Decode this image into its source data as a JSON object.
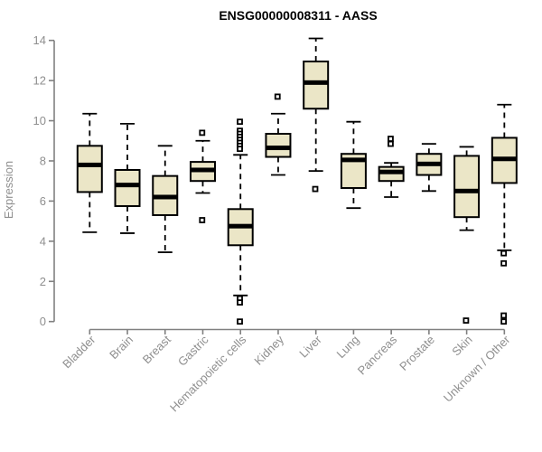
{
  "title": "ENSG00000008311 - AASS",
  "colors": {
    "background": "#ffffff",
    "box_fill": "#ebe6c7",
    "box_border": "#000000",
    "median": "#000000",
    "whisker": "#000000",
    "axis_line": "#808080",
    "axis_text": "#8f8f8f",
    "title_text": "#000000"
  },
  "chart_data": {
    "type": "boxplot",
    "title": "ENSG00000008311 - AASS",
    "xlabel": "",
    "ylabel": "Expression",
    "ylim": [
      0,
      14
    ],
    "yticks": [
      0,
      2,
      4,
      6,
      8,
      10,
      12,
      14
    ],
    "grid": false,
    "legend": "none",
    "categories": [
      "Bladder",
      "Brain",
      "Breast",
      "Gastric",
      "Hematopoietic cells",
      "Kidney",
      "Liver",
      "Lung",
      "Pancreas",
      "Prostate",
      "Skin",
      "Unknown / Other"
    ],
    "series": [
      {
        "category": "Bladder",
        "whisker_low": 4.45,
        "q1": 6.45,
        "median": 7.8,
        "q3": 8.75,
        "whisker_high": 10.35,
        "outliers": []
      },
      {
        "category": "Brain",
        "whisker_low": 4.4,
        "q1": 5.75,
        "median": 6.8,
        "q3": 7.55,
        "whisker_high": 9.85,
        "outliers": []
      },
      {
        "category": "Breast",
        "whisker_low": 3.45,
        "q1": 5.3,
        "median": 6.2,
        "q3": 7.25,
        "whisker_high": 8.75,
        "outliers": []
      },
      {
        "category": "Gastric",
        "whisker_low": 6.4,
        "q1": 7.0,
        "median": 7.55,
        "q3": 7.95,
        "whisker_high": 9.0,
        "outliers": [
          9.4,
          5.05
        ]
      },
      {
        "category": "Hematopoietic cells",
        "whisker_low": 1.3,
        "q1": 3.8,
        "median": 4.75,
        "q3": 5.6,
        "whisker_high": 8.3,
        "outliers": [
          9.95,
          9.5,
          9.35,
          9.2,
          9.05,
          8.9,
          8.75,
          8.6,
          1.15,
          0.95,
          0.0
        ]
      },
      {
        "category": "Kidney",
        "whisker_low": 7.3,
        "q1": 8.2,
        "median": 8.65,
        "q3": 9.35,
        "whisker_high": 10.35,
        "outliers": [
          11.2
        ]
      },
      {
        "category": "Liver",
        "whisker_low": 7.5,
        "q1": 10.6,
        "median": 11.9,
        "q3": 12.95,
        "whisker_high": 14.1,
        "outliers": [
          6.6
        ]
      },
      {
        "category": "Lung",
        "whisker_low": 5.65,
        "q1": 6.65,
        "median": 8.05,
        "q3": 8.35,
        "whisker_high": 9.95,
        "outliers": []
      },
      {
        "category": "Pancreas",
        "whisker_low": 6.2,
        "q1": 7.0,
        "median": 7.45,
        "q3": 7.7,
        "whisker_high": 7.9,
        "outliers": [
          9.1,
          8.85
        ]
      },
      {
        "category": "Prostate",
        "whisker_low": 6.5,
        "q1": 7.3,
        "median": 7.85,
        "q3": 8.35,
        "whisker_high": 8.85,
        "outliers": []
      },
      {
        "category": "Skin",
        "whisker_low": 4.55,
        "q1": 5.2,
        "median": 6.5,
        "q3": 8.25,
        "whisker_high": 8.7,
        "outliers": [
          0.05
        ]
      },
      {
        "category": "Unknown / Other",
        "whisker_low": 3.55,
        "q1": 6.9,
        "median": 8.1,
        "q3": 9.15,
        "whisker_high": 10.8,
        "outliers": [
          3.4,
          2.9,
          0.3,
          0.0
        ]
      }
    ]
  }
}
